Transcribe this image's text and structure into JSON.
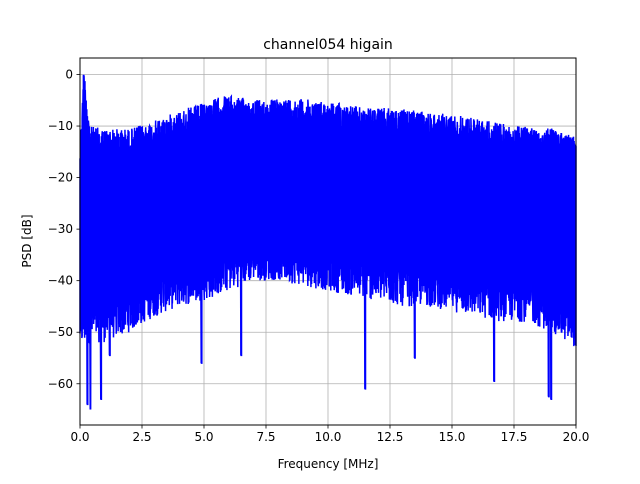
{
  "chart_data": {
    "type": "line",
    "title": "channel054 higain",
    "xlabel": "Frequency [MHz]",
    "ylabel": "PSD [dB]",
    "xlim": [
      0,
      20
    ],
    "ylim": [
      -68,
      3.2
    ],
    "grid": true,
    "x_ticks": [
      0,
      2.5,
      5,
      7.5,
      10,
      12.5,
      15,
      17.5,
      20
    ],
    "x_tick_labels": [
      "0.0",
      "2.5",
      "5.0",
      "7.5",
      "10.0",
      "12.5",
      "15.0",
      "17.5",
      "20.0"
    ],
    "y_ticks": [
      0,
      -10,
      -20,
      -30,
      -40,
      -50,
      -60
    ],
    "y_tick_labels": [
      "0",
      "−10",
      "−20",
      "−30",
      "−40",
      "−50",
      "−60"
    ],
    "series": [
      {
        "color": "#0000ff",
        "envelope_upper": {
          "x": [
            0.0,
            0.15,
            0.2,
            0.4,
            1.0,
            2.0,
            3.0,
            4.0,
            5.0,
            5.8,
            6.5,
            7.5,
            8.5,
            9.5,
            10.5,
            11.5,
            12.5,
            13.5,
            14.5,
            15.5,
            16.5,
            17.5,
            18.5,
            19.5,
            20.0
          ],
          "y": [
            -13.0,
            -0.2,
            -0.5,
            -10.0,
            -10.5,
            -10.5,
            -9.0,
            -7.0,
            -5.5,
            -4.0,
            -4.5,
            -5.0,
            -4.5,
            -5.0,
            -5.5,
            -6.5,
            -6.5,
            -7.0,
            -7.5,
            -8.0,
            -9.0,
            -10.0,
            -10.0,
            -11.0,
            -12.0
          ]
        },
        "envelope_lower": {
          "x": [
            0.0,
            0.5,
            1.0,
            2.0,
            3.0,
            4.0,
            5.0,
            6.0,
            7.0,
            8.0,
            9.0,
            10.0,
            11.0,
            12.0,
            13.0,
            14.0,
            15.0,
            16.0,
            17.0,
            18.0,
            19.0,
            20.0
          ],
          "y": [
            -53.0,
            -52.0,
            -52.0,
            -50.0,
            -47.0,
            -45.0,
            -44.0,
            -42.0,
            -40.0,
            -40.0,
            -41.0,
            -42.0,
            -43.0,
            -44.0,
            -45.0,
            -45.0,
            -46.0,
            -47.0,
            -48.0,
            -48.0,
            -50.0,
            -53.0
          ]
        },
        "dips": {
          "x": [
            0.3,
            0.42,
            0.85,
            1.2,
            4.9,
            6.5,
            11.5,
            13.5,
            16.7,
            18.9,
            19.0
          ],
          "y": [
            -64.0,
            -65.0,
            -63.0,
            -54.5,
            -56.0,
            -54.5,
            -61.0,
            -55.0,
            -59.5,
            -62.5,
            -63.0
          ]
        },
        "peaks": {
          "x": [
            0.15
          ],
          "y": [
            -0.2
          ]
        }
      }
    ]
  }
}
